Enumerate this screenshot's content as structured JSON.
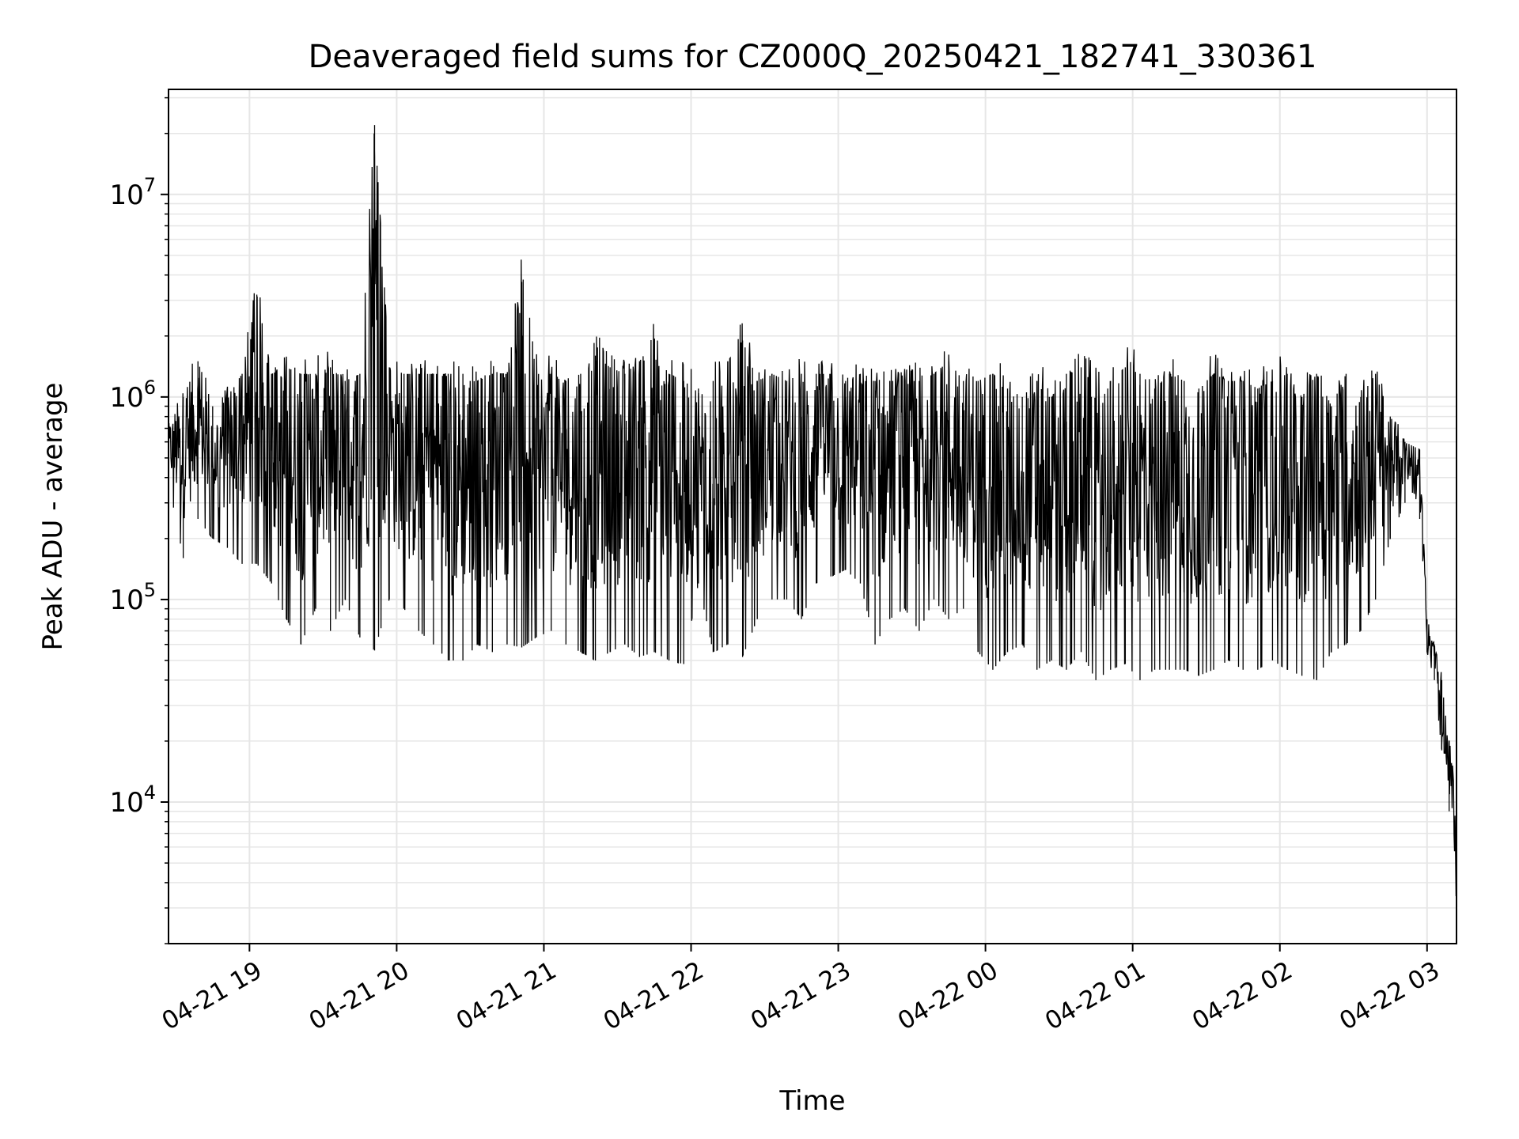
{
  "chart_data": {
    "type": "line",
    "title": "Deaveraged field sums for CZ000Q_20250421_182741_330361",
    "xlabel": "Time",
    "ylabel": "Peak ADU - average",
    "yscale": "log",
    "grid": true,
    "grid_minor": true,
    "legend": "none",
    "line_color": "#000000",
    "grid_color": "#e6e6e6",
    "xlim": [
      "2025-04-21 18:27",
      "2025-04-22 03:12"
    ],
    "ylim": [
      2000,
      33000000
    ],
    "x_ticks": [
      {
        "time": "2025-04-21 19:00",
        "label": "04-21 19"
      },
      {
        "time": "2025-04-21 20:00",
        "label": "04-21 20"
      },
      {
        "time": "2025-04-21 21:00",
        "label": "04-21 21"
      },
      {
        "time": "2025-04-21 22:00",
        "label": "04-21 22"
      },
      {
        "time": "2025-04-21 23:00",
        "label": "04-21 23"
      },
      {
        "time": "2025-04-22 00:00",
        "label": "04-22 00"
      },
      {
        "time": "2025-04-22 01:00",
        "label": "04-22 01"
      },
      {
        "time": "2025-04-22 02:00",
        "label": "04-22 02"
      },
      {
        "time": "2025-04-22 03:00",
        "label": "04-22 03"
      }
    ],
    "y_ticks": [
      {
        "value": 10000,
        "base": "10",
        "exp": "4"
      },
      {
        "value": 100000,
        "base": "10",
        "exp": "5"
      },
      {
        "value": 1000000,
        "base": "10",
        "exp": "6"
      },
      {
        "value": 10000000,
        "base": "10",
        "exp": "7"
      }
    ],
    "series": [
      {
        "x": [
          "2025-04-21 18:27",
          "2025-04-21 18:33",
          "2025-04-21 18:39",
          "2025-04-21 18:45",
          "2025-04-21 18:51",
          "2025-04-21 18:57",
          "2025-04-21 19:03",
          "2025-04-21 19:09",
          "2025-04-21 19:15",
          "2025-04-21 19:21",
          "2025-04-21 19:27",
          "2025-04-21 19:33",
          "2025-04-21 19:39",
          "2025-04-21 19:45",
          "2025-04-21 19:51",
          "2025-04-21 19:57",
          "2025-04-21 20:03",
          "2025-04-21 20:09",
          "2025-04-21 20:15",
          "2025-04-21 20:21",
          "2025-04-21 20:27",
          "2025-04-21 20:33",
          "2025-04-21 20:39",
          "2025-04-21 20:45",
          "2025-04-21 20:51",
          "2025-04-21 20:57",
          "2025-04-21 21:03",
          "2025-04-21 21:09",
          "2025-04-21 21:15",
          "2025-04-21 21:21",
          "2025-04-21 21:27",
          "2025-04-21 21:33",
          "2025-04-21 21:39",
          "2025-04-21 21:45",
          "2025-04-21 21:51",
          "2025-04-21 21:57",
          "2025-04-21 22:03",
          "2025-04-21 22:09",
          "2025-04-21 22:15",
          "2025-04-21 22:21",
          "2025-04-21 22:27",
          "2025-04-21 22:33",
          "2025-04-21 22:39",
          "2025-04-21 22:45",
          "2025-04-21 22:51",
          "2025-04-21 22:57",
          "2025-04-21 23:03",
          "2025-04-21 23:09",
          "2025-04-21 23:15",
          "2025-04-21 23:21",
          "2025-04-21 23:27",
          "2025-04-21 23:33",
          "2025-04-21 23:39",
          "2025-04-21 23:45",
          "2025-04-21 23:51",
          "2025-04-21 23:57",
          "2025-04-22 00:03",
          "2025-04-22 00:09",
          "2025-04-22 00:15",
          "2025-04-22 00:21",
          "2025-04-22 00:27",
          "2025-04-22 00:33",
          "2025-04-22 00:39",
          "2025-04-22 00:45",
          "2025-04-22 00:51",
          "2025-04-22 00:57",
          "2025-04-22 01:03",
          "2025-04-22 01:09",
          "2025-04-22 01:15",
          "2025-04-22 01:21",
          "2025-04-22 01:27",
          "2025-04-22 01:33",
          "2025-04-22 01:39",
          "2025-04-22 01:45",
          "2025-04-22 01:51",
          "2025-04-22 01:57",
          "2025-04-22 02:03",
          "2025-04-22 02:09",
          "2025-04-22 02:15",
          "2025-04-22 02:21",
          "2025-04-22 02:27",
          "2025-04-22 02:33",
          "2025-04-22 02:39",
          "2025-04-22 02:45",
          "2025-04-22 02:51",
          "2025-04-22 02:57",
          "2025-04-22 03:00",
          "2025-04-22 03:03",
          "2025-04-22 03:06",
          "2025-04-22 03:09",
          "2025-04-22 03:12"
        ],
        "high": [
          700000,
          1000000,
          1500000,
          900000,
          1000000,
          1300000,
          3200000,
          1300000,
          1400000,
          1300000,
          1300000,
          1400000,
          1200000,
          1300000,
          22000000,
          1400000,
          1300000,
          1300000,
          1300000,
          1300000,
          1300000,
          1200000,
          1300000,
          1300000,
          3700000,
          1300000,
          1300000,
          1200000,
          1300000,
          1600000,
          1400000,
          1300000,
          1500000,
          1900000,
          1300000,
          1200000,
          1100000,
          1200000,
          1500000,
          1900000,
          1200000,
          1300000,
          1200000,
          1300000,
          1300000,
          1300000,
          1200000,
          1300000,
          1200000,
          1200000,
          1200000,
          1200000,
          1300000,
          1500000,
          1200000,
          1200000,
          1300000,
          1100000,
          1000000,
          1200000,
          1000000,
          1300000,
          1400000,
          1100000,
          1200000,
          1400000,
          1300000,
          1100000,
          1300000,
          1200000,
          1100000,
          1300000,
          1200000,
          1200000,
          1100000,
          1200000,
          1300000,
          1000000,
          1300000,
          900000,
          1300000,
          1000000,
          1300000,
          800000,
          600000,
          550000,
          80000,
          60000,
          40000,
          20000,
          10000
        ],
        "low": [
          380000,
          160000,
          250000,
          200000,
          180000,
          150000,
          150000,
          120000,
          80000,
          60000,
          90000,
          70000,
          100000,
          65000,
          56000,
          100000,
          90000,
          70000,
          60000,
          50000,
          50000,
          60000,
          55000,
          60000,
          58000,
          65000,
          70000,
          60000,
          55000,
          50000,
          55000,
          60000,
          52000,
          55000,
          50000,
          48000,
          120000,
          55000,
          60000,
          52000,
          80000,
          100000,
          100000,
          80000,
          120000,
          130000,
          140000,
          120000,
          60000,
          80000,
          90000,
          70000,
          100000,
          80000,
          90000,
          55000,
          45000,
          55000,
          60000,
          45000,
          50000,
          45000,
          55000,
          40000,
          45000,
          48000,
          40000,
          45000,
          45000,
          45000,
          42000,
          45000,
          50000,
          45000,
          45000,
          50000,
          45000,
          42000,
          40000,
          55000,
          60000,
          70000,
          100000,
          200000,
          300000,
          250000,
          55000,
          40000,
          18000,
          9000,
          3200
        ]
      }
    ]
  }
}
